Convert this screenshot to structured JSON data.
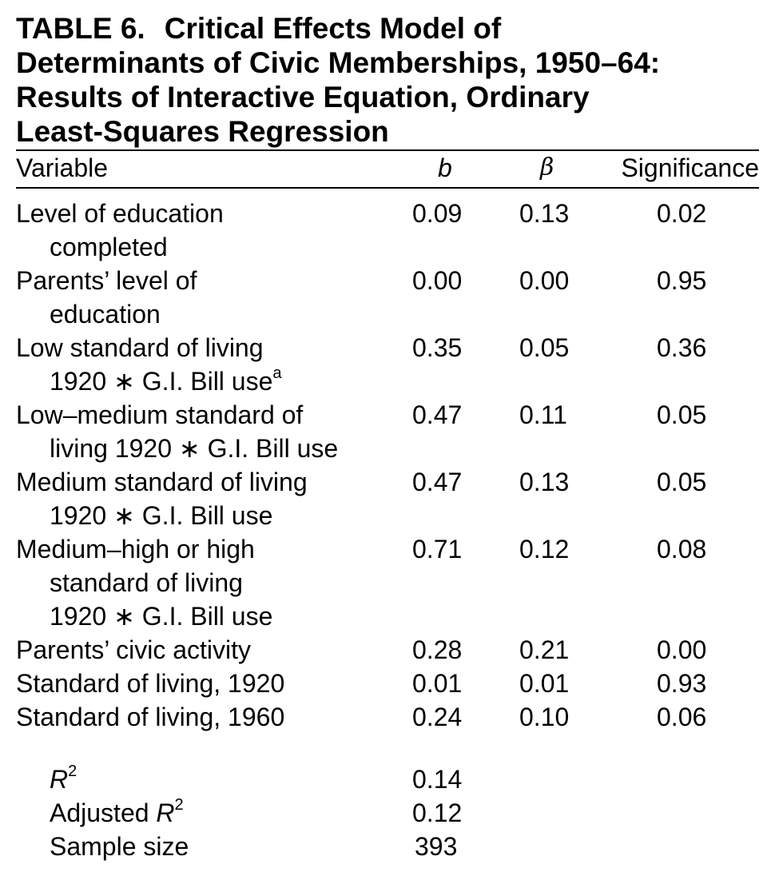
{
  "title": {
    "label": "TABLE 6.",
    "lines": [
      "Critical Effects Model of",
      "Determinants of Civic Memberships, 1950–64:",
      "Results of Interactive Equation, Ordinary",
      "Least-Squares Regression"
    ]
  },
  "columns": {
    "variable": "Variable",
    "b": "b",
    "beta": "β",
    "significance": "Significance"
  },
  "rows": [
    {
      "variable": "Level of education",
      "variable_cont": [
        "completed"
      ],
      "footnote": "",
      "b": "0.09",
      "beta": "0.13",
      "significance": "0.02"
    },
    {
      "variable": "Parents’ level of",
      "variable_cont": [
        "education"
      ],
      "footnote": "",
      "b": "0.00",
      "beta": "0.00",
      "significance": "0.95"
    },
    {
      "variable": "Low standard of living",
      "variable_cont": [
        "1920 ∗ G.I. Bill use"
      ],
      "footnote": "a",
      "b": "0.35",
      "beta": "0.05",
      "significance": "0.36"
    },
    {
      "variable": "Low–medium standard of",
      "variable_cont": [
        "living 1920 ∗ G.I. Bill use"
      ],
      "footnote": "",
      "b": "0.47",
      "beta": "0.11",
      "significance": "0.05"
    },
    {
      "variable": "Medium standard of living",
      "variable_cont": [
        "1920 ∗ G.I. Bill use"
      ],
      "footnote": "",
      "b": "0.47",
      "beta": "0.13",
      "significance": "0.05"
    },
    {
      "variable": "Medium–high or high",
      "variable_cont": [
        "standard of living",
        "1920 ∗ G.I. Bill use"
      ],
      "footnote": "",
      "b": "0.71",
      "beta": "0.12",
      "significance": "0.08"
    },
    {
      "variable": "Parents’ civic activity",
      "variable_cont": [],
      "footnote": "",
      "b": "0.28",
      "beta": "0.21",
      "significance": "0.00"
    },
    {
      "variable": "Standard of living, 1920",
      "variable_cont": [],
      "footnote": "",
      "b": "0.01",
      "beta": "0.01",
      "significance": "0.93"
    },
    {
      "variable": "Standard of living, 1960",
      "variable_cont": [],
      "footnote": "",
      "b": "0.24",
      "beta": "0.10",
      "significance": "0.06"
    }
  ],
  "stats": {
    "r2": {
      "symbol": "R",
      "exp": "2",
      "value": "0.14"
    },
    "adj_r2": {
      "prefix": "Adjusted ",
      "symbol": "R",
      "exp": "2",
      "value": "0.12"
    },
    "n": {
      "label": "Sample size",
      "value": "393"
    }
  }
}
